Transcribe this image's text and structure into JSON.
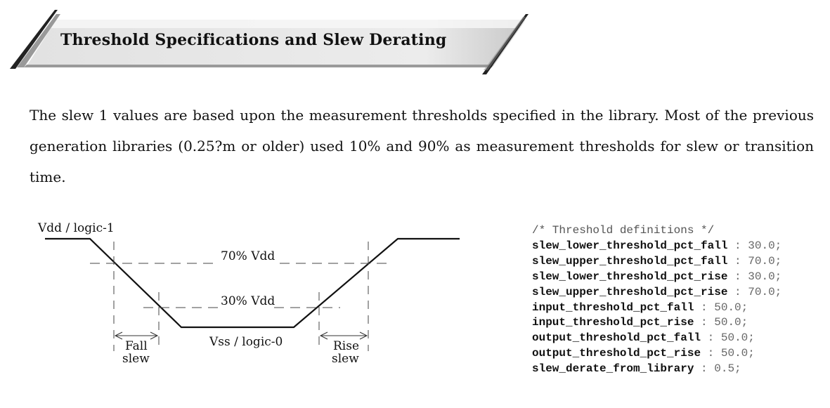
{
  "header": {
    "title": "Threshold Specifications and Slew Derating"
  },
  "paragraph": "The slew 1 values are based upon the measurement thresholds specified in the library. Most of the previous generation libraries (0.25?m or older) used 10% and 90% as measurement thresholds for slew or transition time.",
  "diagram": {
    "vdd_label": "Vdd / logic-1",
    "vss_label": "Vss / logic-0",
    "upper_label": "70% Vdd",
    "lower_label": "30% Vdd",
    "fall_label_1": "Fall",
    "fall_label_2": "slew",
    "rise_label_1": "Rise",
    "rise_label_2": "slew"
  },
  "code": {
    "comment": "/* Threshold definitions */",
    "lines": [
      {
        "key": "slew_lower_threshold_pct_fall",
        "value": "30.0;"
      },
      {
        "key": "slew_upper_threshold_pct_fall",
        "value": "70.0;"
      },
      {
        "key": "slew_lower_threshold_pct_rise",
        "value": "30.0;"
      },
      {
        "key": "slew_upper_threshold_pct_rise",
        "value": "70.0;"
      },
      {
        "key": "input_threshold_pct_fall",
        "value": "50.0;"
      },
      {
        "key": "input_threshold_pct_rise",
        "value": "50.0;"
      },
      {
        "key": "output_threshold_pct_fall",
        "value": "50.0;"
      },
      {
        "key": "output_threshold_pct_rise",
        "value": "50.0;"
      },
      {
        "key": "slew_derate_from_library",
        "value": "0.5;"
      }
    ]
  }
}
